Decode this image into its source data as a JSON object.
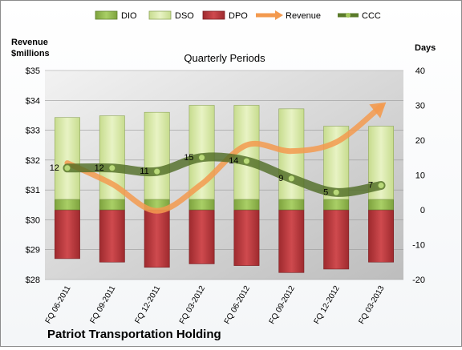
{
  "chart_data": {
    "type": "bar",
    "title": "Quarterly Periods",
    "company": "Patriot Transportation Holding",
    "left_axis_label": [
      "Revenue",
      "$millions"
    ],
    "right_axis_label": "Days",
    "categories": [
      "FQ 06-2011",
      "FQ 09-2011",
      "FQ 12-2011",
      "FQ 03-2012",
      "FQ 06-2012",
      "FQ 09-2012",
      "FQ 12-2012",
      "FQ 03-2013"
    ],
    "left_ticks": [
      "$35",
      "$34",
      "$33",
      "$32",
      "$31",
      "$30",
      "$29",
      "$28"
    ],
    "right_ticks": [
      "40",
      "30",
      "20",
      "10",
      "0",
      "-10",
      "-20"
    ],
    "ylim_left": [
      28,
      35
    ],
    "ylim_right": [
      -20,
      40
    ],
    "legend": [
      {
        "name": "DIO",
        "type": "bar",
        "color": "#8fb84c"
      },
      {
        "name": "DSO",
        "type": "bar",
        "color": "#d6e8a6"
      },
      {
        "name": "DPO",
        "type": "bar",
        "color": "#b83236"
      },
      {
        "name": "Revenue",
        "type": "line",
        "color": "#f39a4f"
      },
      {
        "name": "CCC",
        "type": "line",
        "color": "#5a7a2a"
      }
    ],
    "series": [
      {
        "name": "DIO",
        "axis": "right",
        "values": [
          3,
          3,
          3,
          3,
          3,
          3,
          3,
          3
        ]
      },
      {
        "name": "DSO",
        "axis": "right",
        "values": [
          23.5,
          24,
          25,
          27,
          27,
          26,
          21,
          21
        ]
      },
      {
        "name": "DPO",
        "axis": "right",
        "values": [
          -14,
          -15,
          -16.5,
          -15.5,
          -16,
          -18,
          -17,
          -15
        ]
      },
      {
        "name": "Revenue",
        "axis": "left",
        "values": [
          31.9,
          31.2,
          30.3,
          31.2,
          32.5,
          32.3,
          32.6,
          33.8
        ]
      },
      {
        "name": "CCC",
        "axis": "right",
        "values": [
          12,
          12,
          11,
          15,
          14,
          9,
          5,
          7
        ]
      }
    ],
    "ccc_labels": [
      "12",
      "12",
      "11",
      "15",
      "14",
      "9",
      "5",
      "7"
    ]
  }
}
